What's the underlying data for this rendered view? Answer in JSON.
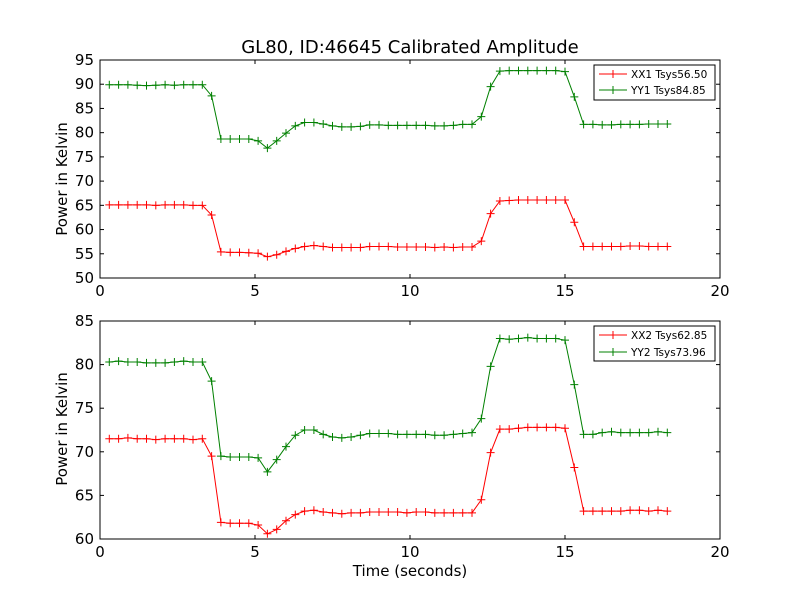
{
  "chart_data": [
    {
      "type": "line",
      "title": "GL80, ID:46645 Calibrated Amplitude",
      "xlabel": "",
      "ylabel": "Power in Kelvin",
      "xlim": [
        0,
        20
      ],
      "ylim": [
        50,
        95
      ],
      "xticks": [
        "0",
        "5",
        "10",
        "15",
        "20"
      ],
      "yticks": [
        "50",
        "55",
        "60",
        "65",
        "70",
        "75",
        "80",
        "85",
        "90",
        "95"
      ],
      "legend_position": "top-right",
      "grid": false,
      "marker": "plus",
      "x": [
        0.3,
        0.6,
        0.9,
        1.2,
        1.5,
        1.8,
        2.1,
        2.4,
        2.7,
        3.0,
        3.3,
        3.6,
        3.9,
        4.2,
        4.5,
        4.8,
        5.1,
        5.4,
        5.7,
        6.0,
        6.3,
        6.6,
        6.9,
        7.2,
        7.5,
        7.8,
        8.1,
        8.4,
        8.7,
        9.0,
        9.3,
        9.6,
        9.9,
        10.2,
        10.5,
        10.8,
        11.1,
        11.4,
        11.7,
        12.0,
        12.3,
        12.6,
        12.9,
        13.2,
        13.5,
        13.8,
        14.1,
        14.4,
        14.7,
        15.0,
        15.3,
        15.6,
        15.9,
        16.2,
        16.5,
        16.8,
        17.1,
        17.4,
        17.7,
        18.0,
        18.3
      ],
      "series": [
        {
          "name": "XX1 Tsys56.50",
          "color": "#ff0000",
          "values": [
            65.1,
            65.1,
            65.1,
            65.1,
            65.1,
            65.0,
            65.1,
            65.1,
            65.1,
            65.0,
            65.0,
            63.0,
            55.4,
            55.3,
            55.3,
            55.2,
            55.1,
            54.4,
            54.8,
            55.5,
            56.1,
            56.5,
            56.7,
            56.5,
            56.3,
            56.3,
            56.3,
            56.3,
            56.5,
            56.5,
            56.5,
            56.4,
            56.4,
            56.4,
            56.4,
            56.3,
            56.4,
            56.3,
            56.4,
            56.4,
            57.6,
            63.3,
            65.9,
            66.0,
            66.1,
            66.1,
            66.1,
            66.1,
            66.1,
            66.1,
            61.5,
            56.5,
            56.5,
            56.5,
            56.5,
            56.5,
            56.6,
            56.6,
            56.5,
            56.5,
            56.5
          ]
        },
        {
          "name": "YY1 Tsys84.85",
          "color": "#008000",
          "values": [
            89.9,
            89.9,
            89.9,
            89.8,
            89.7,
            89.8,
            89.9,
            89.8,
            89.9,
            89.9,
            89.9,
            87.6,
            78.7,
            78.7,
            78.7,
            78.7,
            78.3,
            76.8,
            78.3,
            79.9,
            81.4,
            82.1,
            82.1,
            81.8,
            81.4,
            81.2,
            81.2,
            81.3,
            81.6,
            81.6,
            81.5,
            81.5,
            81.5,
            81.5,
            81.5,
            81.4,
            81.4,
            81.5,
            81.7,
            81.7,
            83.3,
            89.5,
            92.7,
            92.8,
            92.8,
            92.8,
            92.8,
            92.8,
            92.8,
            92.6,
            87.4,
            81.7,
            81.7,
            81.6,
            81.6,
            81.7,
            81.7,
            81.7,
            81.8,
            81.8,
            81.8
          ]
        }
      ]
    },
    {
      "type": "line",
      "title": "",
      "xlabel": "Time (seconds)",
      "ylabel": "Power in Kelvin",
      "xlim": [
        0,
        20
      ],
      "ylim": [
        60,
        85
      ],
      "xticks": [
        "0",
        "5",
        "10",
        "15",
        "20"
      ],
      "yticks": [
        "60",
        "65",
        "70",
        "75",
        "80",
        "85"
      ],
      "legend_position": "top-right",
      "grid": false,
      "marker": "plus",
      "x": [
        0.3,
        0.6,
        0.9,
        1.2,
        1.5,
        1.8,
        2.1,
        2.4,
        2.7,
        3.0,
        3.3,
        3.6,
        3.9,
        4.2,
        4.5,
        4.8,
        5.1,
        5.4,
        5.7,
        6.0,
        6.3,
        6.6,
        6.9,
        7.2,
        7.5,
        7.8,
        8.1,
        8.4,
        8.7,
        9.0,
        9.3,
        9.6,
        9.9,
        10.2,
        10.5,
        10.8,
        11.1,
        11.4,
        11.7,
        12.0,
        12.3,
        12.6,
        12.9,
        13.2,
        13.5,
        13.8,
        14.1,
        14.4,
        14.7,
        15.0,
        15.3,
        15.6,
        15.9,
        16.2,
        16.5,
        16.8,
        17.1,
        17.4,
        17.7,
        18.0,
        18.3
      ],
      "series": [
        {
          "name": "XX2 Tsys62.85",
          "color": "#ff0000",
          "values": [
            71.5,
            71.5,
            71.6,
            71.5,
            71.5,
            71.4,
            71.5,
            71.5,
            71.5,
            71.4,
            71.5,
            69.5,
            61.9,
            61.8,
            61.8,
            61.8,
            61.6,
            60.6,
            61.1,
            62.1,
            62.8,
            63.2,
            63.3,
            63.1,
            63.0,
            62.9,
            63.0,
            63.0,
            63.1,
            63.1,
            63.1,
            63.1,
            63.0,
            63.1,
            63.1,
            63.0,
            63.0,
            63.0,
            63.0,
            63.0,
            64.5,
            69.9,
            72.6,
            72.6,
            72.7,
            72.8,
            72.8,
            72.8,
            72.8,
            72.7,
            68.2,
            63.2,
            63.2,
            63.2,
            63.2,
            63.2,
            63.3,
            63.3,
            63.2,
            63.3,
            63.2
          ]
        },
        {
          "name": "YY2 Tsys73.96",
          "color": "#008000",
          "values": [
            80.3,
            80.4,
            80.3,
            80.3,
            80.2,
            80.2,
            80.2,
            80.3,
            80.4,
            80.3,
            80.3,
            78.1,
            69.5,
            69.4,
            69.4,
            69.4,
            69.3,
            67.7,
            69.1,
            70.6,
            71.9,
            72.5,
            72.5,
            72.0,
            71.7,
            71.6,
            71.7,
            71.9,
            72.1,
            72.1,
            72.1,
            72.0,
            72.0,
            72.0,
            72.0,
            71.9,
            71.9,
            72.0,
            72.1,
            72.2,
            73.8,
            79.8,
            83.0,
            82.9,
            83.0,
            83.1,
            83.0,
            83.0,
            83.0,
            82.8,
            77.7,
            72.0,
            72.0,
            72.2,
            72.3,
            72.2,
            72.2,
            72.2,
            72.2,
            72.3,
            72.2
          ]
        }
      ]
    }
  ]
}
